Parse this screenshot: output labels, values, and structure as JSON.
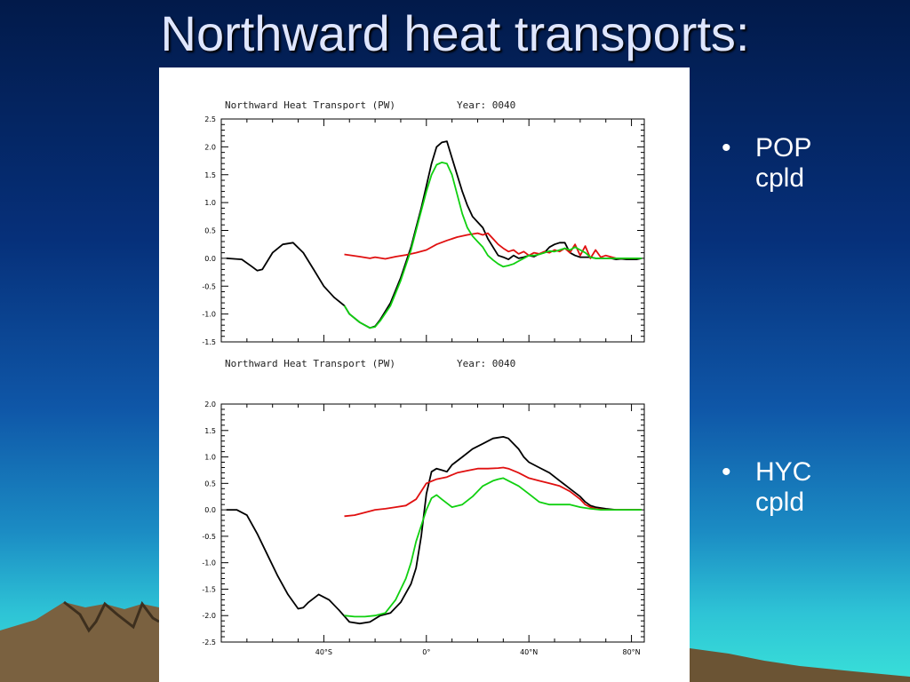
{
  "slide": {
    "title": "Northward heat transports:",
    "bullets": [
      {
        "symbol": "•",
        "line1": "POP",
        "line2": "cpld"
      },
      {
        "symbol": "•",
        "line1": "HYC",
        "line2": "cpld"
      }
    ]
  },
  "colors": {
    "full_model": "#000000",
    "red_series": "#e01010",
    "green_series": "#10d010"
  },
  "chart_data": [
    {
      "type": "line",
      "title": "Northward Heat Transport (PW)",
      "subtitle": "Year: 0040",
      "xlim": [
        -80,
        85
      ],
      "ylim": [
        -1.5,
        2.5
      ],
      "yticks": [
        -1.5,
        -1.0,
        -0.5,
        0.0,
        0.5,
        1.0,
        1.5,
        2.0,
        2.5
      ],
      "ytick_labels": [
        "-1.5",
        "-1.0",
        "-0.5",
        "0.0",
        "0.5",
        "1.0",
        "1.5",
        "2.0",
        "2.5"
      ],
      "xticks": [
        -40,
        0,
        40,
        80
      ],
      "xtick_labels": [],
      "series": [
        {
          "color": "#000000",
          "x": [
            -78,
            -72,
            -68,
            -66,
            -64,
            -60,
            -56,
            -52,
            -48,
            -44,
            -40,
            -36,
            -32,
            -30,
            -26,
            -22,
            -20,
            -18,
            -14,
            -10,
            -6,
            -4,
            -2,
            0,
            2,
            4,
            6,
            8,
            10,
            12,
            14,
            16,
            18,
            20,
            22,
            24,
            26,
            28,
            30,
            32,
            34,
            36,
            38,
            40,
            42,
            44,
            46,
            48,
            50,
            52,
            54,
            56,
            58,
            60,
            62,
            64,
            66,
            68,
            70,
            72,
            74,
            76,
            78,
            80,
            82,
            84
          ],
          "y": [
            0,
            -0.02,
            -0.15,
            -0.22,
            -0.2,
            0.1,
            0.25,
            0.28,
            0.1,
            -0.2,
            -0.5,
            -0.7,
            -0.85,
            -1.0,
            -1.15,
            -1.25,
            -1.22,
            -1.1,
            -0.8,
            -0.35,
            0.2,
            0.55,
            0.9,
            1.3,
            1.7,
            2.0,
            2.08,
            2.1,
            1.8,
            1.5,
            1.2,
            0.95,
            0.75,
            0.65,
            0.55,
            0.35,
            0.2,
            0.05,
            0.02,
            -0.02,
            0.05,
            0.0,
            0.02,
            0.05,
            0.03,
            0.08,
            0.1,
            0.2,
            0.25,
            0.28,
            0.28,
            0.1,
            0.05,
            0.02,
            0.02,
            0.02,
            0.0,
            0.0,
            0.0,
            0.0,
            -0.02,
            -0.01,
            -0.02,
            -0.02,
            -0.02,
            0.0
          ]
        },
        {
          "color": "#e01010",
          "x": [
            -32,
            -26,
            -22,
            -20,
            -16,
            -12,
            -8,
            -4,
            0,
            4,
            8,
            12,
            16,
            20,
            22,
            24,
            26,
            28,
            30,
            32,
            34,
            36,
            38,
            40,
            42,
            44,
            46,
            48,
            50,
            52,
            54,
            56,
            58,
            60,
            62,
            64,
            66,
            68,
            70,
            74,
            78,
            82
          ],
          "y": [
            0.07,
            0.03,
            0.0,
            0.02,
            -0.01,
            0.03,
            0.06,
            0.1,
            0.15,
            0.25,
            0.32,
            0.38,
            0.42,
            0.45,
            0.42,
            0.45,
            0.35,
            0.25,
            0.18,
            0.12,
            0.15,
            0.08,
            0.12,
            0.05,
            0.1,
            0.08,
            0.12,
            0.1,
            0.15,
            0.12,
            0.18,
            0.1,
            0.25,
            0.05,
            0.22,
            0.0,
            0.15,
            0.02,
            0.05,
            0.0,
            0.0,
            0.0
          ]
        },
        {
          "color": "#10d010",
          "x": [
            -32,
            -30,
            -26,
            -22,
            -20,
            -18,
            -14,
            -10,
            -6,
            -4,
            -2,
            0,
            2,
            4,
            6,
            8,
            10,
            12,
            14,
            16,
            18,
            20,
            22,
            24,
            26,
            28,
            30,
            32,
            34,
            36,
            38,
            40,
            42,
            44,
            46,
            48,
            50,
            52,
            54,
            56,
            58,
            60,
            62,
            64,
            66,
            68,
            70,
            72,
            76,
            80,
            84
          ],
          "y": [
            -0.85,
            -1.0,
            -1.15,
            -1.25,
            -1.23,
            -1.12,
            -0.85,
            -0.4,
            0.15,
            0.5,
            0.85,
            1.2,
            1.5,
            1.68,
            1.72,
            1.7,
            1.5,
            1.15,
            0.8,
            0.55,
            0.4,
            0.3,
            0.2,
            0.05,
            -0.03,
            -0.1,
            -0.15,
            -0.13,
            -0.1,
            -0.05,
            0.0,
            0.05,
            0.05,
            0.07,
            0.1,
            0.13,
            0.12,
            0.15,
            0.18,
            0.15,
            0.2,
            0.15,
            0.1,
            0.02,
            0.0,
            0.0,
            0.0,
            0.0,
            0.0,
            0.0,
            0.0
          ]
        }
      ]
    },
    {
      "type": "line",
      "title": "Northward Heat Transport (PW)",
      "subtitle": "Year: 0040",
      "xlim": [
        -80,
        85
      ],
      "ylim": [
        -2.5,
        2.0
      ],
      "yticks": [
        -2.5,
        -2.0,
        -1.5,
        -1.0,
        -0.5,
        0.0,
        0.5,
        1.0,
        1.5,
        2.0
      ],
      "ytick_labels": [
        "-2.5",
        "-2.0",
        "-1.5",
        "-1.0",
        "-0.5",
        "0.0",
        "0.5",
        "1.0",
        "1.5",
        "2.0"
      ],
      "xticks": [
        -40,
        0,
        40,
        80
      ],
      "xtick_labels": [
        "40°S",
        "0°",
        "40°N",
        "80°N"
      ],
      "series": [
        {
          "color": "#000000",
          "x": [
            -78,
            -74,
            -70,
            -66,
            -62,
            -58,
            -54,
            -50,
            -48,
            -46,
            -42,
            -38,
            -34,
            -30,
            -26,
            -22,
            -18,
            -14,
            -10,
            -6,
            -4,
            -2,
            0,
            2,
            4,
            6,
            8,
            10,
            14,
            18,
            22,
            26,
            30,
            32,
            34,
            36,
            38,
            40,
            44,
            48,
            52,
            56,
            60,
            62,
            64,
            66,
            70,
            74,
            78,
            84
          ],
          "y": [
            0,
            0,
            -0.1,
            -0.45,
            -0.85,
            -1.25,
            -1.6,
            -1.87,
            -1.85,
            -1.75,
            -1.6,
            -1.7,
            -1.9,
            -2.12,
            -2.15,
            -2.12,
            -2.0,
            -1.95,
            -1.75,
            -1.4,
            -1.1,
            -0.5,
            0.3,
            0.72,
            0.78,
            0.75,
            0.72,
            0.85,
            1.0,
            1.15,
            1.25,
            1.35,
            1.38,
            1.35,
            1.25,
            1.15,
            1.0,
            0.9,
            0.8,
            0.7,
            0.55,
            0.4,
            0.25,
            0.15,
            0.08,
            0.05,
            0.02,
            0.0,
            0.0,
            0.0
          ]
        },
        {
          "color": "#e01010",
          "x": [
            -32,
            -28,
            -24,
            -20,
            -16,
            -12,
            -8,
            -4,
            0,
            4,
            8,
            12,
            16,
            20,
            24,
            28,
            30,
            32,
            36,
            40,
            44,
            48,
            52,
            56,
            60,
            62,
            64,
            66,
            70,
            74,
            78,
            84
          ],
          "y": [
            -0.12,
            -0.1,
            -0.05,
            0.0,
            0.02,
            0.05,
            0.08,
            0.2,
            0.5,
            0.58,
            0.62,
            0.7,
            0.74,
            0.78,
            0.78,
            0.79,
            0.8,
            0.78,
            0.7,
            0.6,
            0.55,
            0.5,
            0.45,
            0.35,
            0.2,
            0.1,
            0.05,
            0.02,
            0.0,
            0.0,
            0.0,
            0.0
          ]
        },
        {
          "color": "#10d010",
          "x": [
            -32,
            -28,
            -24,
            -20,
            -16,
            -12,
            -8,
            -6,
            -4,
            -2,
            0,
            2,
            4,
            6,
            10,
            14,
            18,
            22,
            26,
            28,
            30,
            32,
            36,
            40,
            44,
            48,
            52,
            56,
            60,
            64,
            68,
            72,
            76,
            80,
            84
          ],
          "y": [
            -2.0,
            -2.02,
            -2.02,
            -2.0,
            -1.95,
            -1.7,
            -1.3,
            -1.0,
            -0.6,
            -0.3,
            0.0,
            0.22,
            0.28,
            0.2,
            0.05,
            0.1,
            0.25,
            0.45,
            0.55,
            0.58,
            0.6,
            0.55,
            0.45,
            0.3,
            0.15,
            0.1,
            0.1,
            0.1,
            0.05,
            0.02,
            0.0,
            0.0,
            0.0,
            0.0,
            0.0
          ]
        }
      ]
    }
  ]
}
